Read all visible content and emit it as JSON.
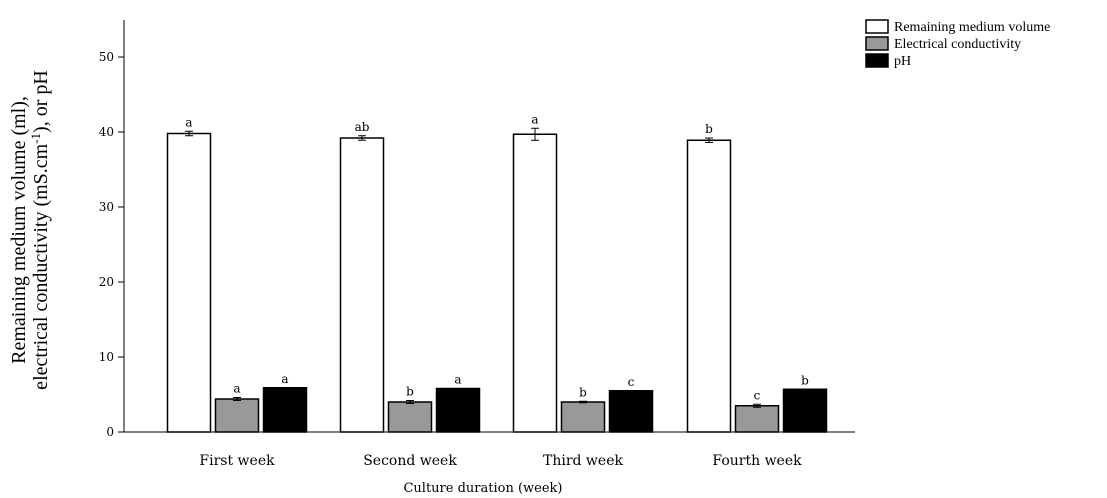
{
  "chart_data": {
    "type": "bar",
    "categories": [
      "First week",
      "Second week",
      "Third week",
      "Fourth week"
    ],
    "series": [
      {
        "name": "Remaining medium volume",
        "color": "#ffffff",
        "values": [
          39.8,
          39.2,
          39.7,
          38.9
        ],
        "errors": [
          0.3,
          0.3,
          0.8,
          0.3
        ],
        "letters": [
          "a",
          "ab",
          "a",
          "b"
        ]
      },
      {
        "name": "Electrical conductivity",
        "color": "#999999",
        "values": [
          4.4,
          4.0,
          4.0,
          3.5
        ],
        "errors": [
          0.2,
          0.2,
          0.1,
          0.2
        ],
        "letters": [
          "a",
          "b",
          "b",
          "c"
        ]
      },
      {
        "name": "pH",
        "color": "#000000",
        "values": [
          5.9,
          5.8,
          5.5,
          5.7
        ],
        "errors": [
          0,
          0,
          0,
          0
        ],
        "letters": [
          "a",
          "a",
          "c",
          "b"
        ]
      }
    ],
    "xlabel": "Culture duration (week)",
    "ylabel_line1": "Remaining medium volume (ml),",
    "ylabel_line2_prefix": "electrical conductivity (mS.cm",
    "ylabel_line2_sup": "-1",
    "ylabel_line2_suffix": "), or pH",
    "ylim": [
      0,
      55
    ],
    "yticks": [
      0,
      10,
      20,
      30,
      40,
      50
    ],
    "legend_position": "top-right",
    "grid": false
  }
}
